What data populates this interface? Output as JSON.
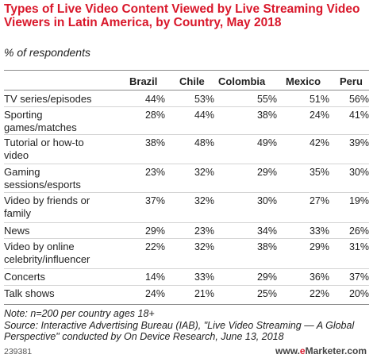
{
  "title": "Types of Live Video Content Viewed by Live Streaming Video Viewers in Latin America, by Country, May 2018",
  "subtitle": "% of respondents",
  "chart_data": {
    "type": "table",
    "columns": [
      "Brazil",
      "Chile",
      "Colombia",
      "Mexico",
      "Peru"
    ],
    "rows": [
      {
        "label": "TV series/episodes",
        "values": [
          "44%",
          "53%",
          "55%",
          "51%",
          "56%"
        ]
      },
      {
        "label": "Sporting games/matches",
        "values": [
          "28%",
          "44%",
          "38%",
          "24%",
          "41%"
        ]
      },
      {
        "label": "Tutorial or how-to video",
        "values": [
          "38%",
          "48%",
          "49%",
          "42%",
          "39%"
        ]
      },
      {
        "label": "Gaming sessions/esports",
        "values": [
          "23%",
          "32%",
          "29%",
          "35%",
          "30%"
        ]
      },
      {
        "label": "Video by friends or family",
        "values": [
          "37%",
          "32%",
          "30%",
          "27%",
          "19%"
        ]
      },
      {
        "label": "News",
        "values": [
          "29%",
          "23%",
          "34%",
          "33%",
          "26%"
        ]
      },
      {
        "label": "Video by online celebrity/influencer",
        "values": [
          "22%",
          "32%",
          "38%",
          "29%",
          "31%"
        ]
      },
      {
        "label": "Concerts",
        "values": [
          "14%",
          "33%",
          "29%",
          "36%",
          "37%"
        ]
      },
      {
        "label": "Talk shows",
        "values": [
          "24%",
          "21%",
          "25%",
          "22%",
          "20%"
        ]
      }
    ]
  },
  "footnote": "Note: n=200 per country ages 18+\nSource: Interactive Advertising Bureau (IAB), \"Live Video Streaming — A Global Perspective\" conducted by On Device Research, June 13, 2018",
  "chart_id": "239381",
  "brand": {
    "prefix": "www.",
    "e": "e",
    "rest": "Marketer",
    "suffix": ".com"
  }
}
